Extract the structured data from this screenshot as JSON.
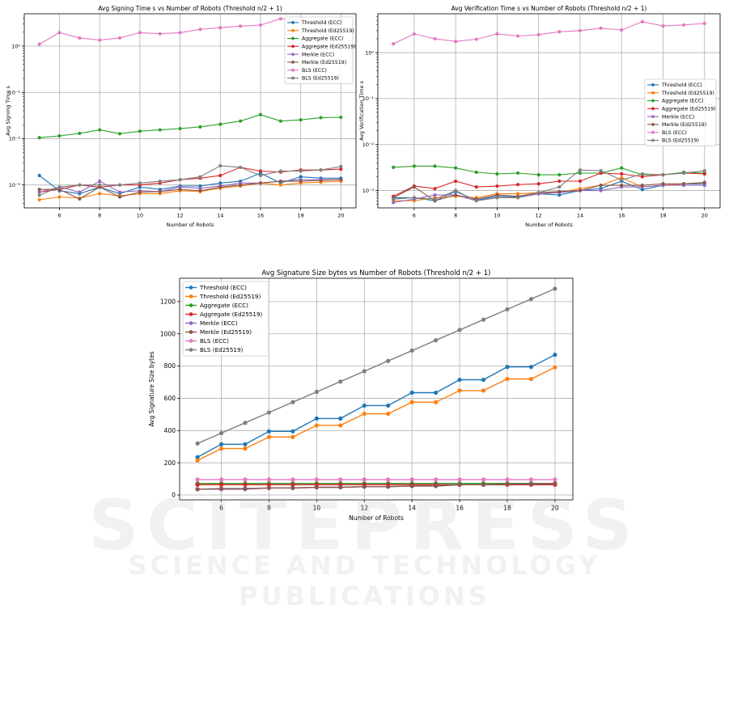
{
  "chart_data": [
    {
      "type": "line",
      "title": "Avg Signing Time s vs Number of Robots (Threshold n/2 + 1)",
      "xlabel": "Number of Robots",
      "ylabel": "Avg Signing Time s",
      "yscale": "log",
      "xlim": [
        4.25,
        20.75
      ],
      "ylim": [
        0.00032,
        5.0
      ],
      "xticks": [
        6,
        8,
        10,
        12,
        14,
        16,
        18,
        20
      ],
      "yticks": [
        0.001,
        0.01,
        0.1,
        1
      ],
      "ytick_labels": [
        "10⁻³",
        "10⁻²",
        "10⁻¹",
        "10⁰"
      ],
      "grid": true,
      "legend_position": "top-right",
      "x": [
        5,
        6,
        7,
        8,
        9,
        10,
        11,
        12,
        13,
        14,
        15,
        16,
        17,
        18,
        19,
        20
      ],
      "series": [
        {
          "name": "Threshold (ECC)",
          "color": "#1f77b4",
          "values": [
            0.0016,
            0.00075,
            0.00065,
            0.0009,
            0.00065,
            0.0009,
            0.0008,
            0.00095,
            0.00095,
            0.0011,
            0.0012,
            0.0018,
            0.0011,
            0.0015,
            0.0014,
            0.0014
          ]
        },
        {
          "name": "Threshold (Ed25519)",
          "color": "#ff7f0e",
          "values": [
            0.00048,
            0.00055,
            0.00052,
            0.00065,
            0.00058,
            0.00065,
            0.00065,
            0.00075,
            0.00072,
            0.00085,
            0.00095,
            0.0011,
            0.001,
            0.0011,
            0.00115,
            0.0012
          ]
        },
        {
          "name": "Aggregate (ECC)",
          "color": "#2ca02c",
          "values": [
            0.0105,
            0.0115,
            0.013,
            0.0155,
            0.0128,
            0.0145,
            0.0155,
            0.0165,
            0.018,
            0.0205,
            0.024,
            0.033,
            0.024,
            0.0255,
            0.0285,
            0.029
          ]
        },
        {
          "name": "Aggregate (Ed25519)",
          "color": "#d62728",
          "values": [
            0.0007,
            0.0008,
            0.001,
            0.0009,
            0.001,
            0.001,
            0.0011,
            0.0013,
            0.0014,
            0.0016,
            0.0024,
            0.002,
            0.0019,
            0.0021,
            0.0021,
            0.0022
          ]
        },
        {
          "name": "Merkle (ECC)",
          "color": "#9467bd",
          "values": [
            0.0007,
            0.0009,
            0.0007,
            0.0012,
            0.0007,
            0.00075,
            0.00072,
            0.0009,
            0.00085,
            0.00095,
            0.0011,
            0.0011,
            0.0012,
            0.0013,
            0.0013,
            0.0013
          ]
        },
        {
          "name": "Merkle (Ed25519)",
          "color": "#8c564b",
          "values": [
            0.0008,
            0.0008,
            0.0005,
            0.0009,
            0.00055,
            0.0007,
            0.00072,
            0.0008,
            0.00075,
            0.0009,
            0.001,
            0.0011,
            0.0012,
            0.0012,
            0.00125,
            0.0013
          ]
        },
        {
          "name": "BLS (ECC)",
          "color": "#e377c2",
          "values": [
            1.1,
            1.95,
            1.5,
            1.35,
            1.5,
            1.95,
            1.85,
            1.95,
            2.3,
            2.5,
            2.7,
            2.85,
            3.9,
            3.5,
            3.6,
            3.8
          ]
        },
        {
          "name": "BLS (Ed25519)",
          "color": "#7f7f7f",
          "values": [
            0.0006,
            0.0009,
            0.001,
            0.001,
            0.001,
            0.0011,
            0.0012,
            0.0013,
            0.0015,
            0.0026,
            0.0024,
            0.0016,
            0.002,
            0.002,
            0.0021,
            0.0025
          ]
        }
      ]
    },
    {
      "type": "line",
      "title": "Avg Verification Time s vs Number of Robots (Threshold n/2 + 1)",
      "xlabel": "Number of Robots",
      "ylabel": "Avg Verification Time s",
      "yscale": "log",
      "xlim": [
        4.25,
        20.75
      ],
      "ylim": [
        0.00042,
        7.0
      ],
      "xticks": [
        6,
        8,
        10,
        12,
        14,
        16,
        18,
        20
      ],
      "yticks": [
        0.001,
        0.01,
        0.1,
        1
      ],
      "ytick_labels": [
        "10⁻³",
        "10⁻²",
        "10⁻¹",
        "10⁰"
      ],
      "grid": true,
      "legend_position": "center-right",
      "x": [
        5,
        6,
        7,
        8,
        9,
        10,
        11,
        12,
        13,
        14,
        15,
        16,
        17,
        18,
        19,
        20
      ],
      "series": [
        {
          "name": "Threshold (ECC)",
          "color": "#1f77b4",
          "values": [
            0.0007,
            0.0007,
            0.0006,
            0.00095,
            0.00062,
            0.00075,
            0.00072,
            0.00085,
            0.0008,
            0.001,
            0.0011,
            0.0016,
            0.00105,
            0.0013,
            0.0014,
            0.0014
          ]
        },
        {
          "name": "Threshold (Ed25519)",
          "color": "#ff7f0e",
          "values": [
            0.0006,
            0.0006,
            0.0007,
            0.00075,
            0.0007,
            0.00085,
            0.00085,
            0.0009,
            0.0009,
            0.0011,
            0.0013,
            0.0019,
            0.0012,
            0.0013,
            0.0014,
            0.0015
          ]
        },
        {
          "name": "Aggregate (ECC)",
          "color": "#2ca02c",
          "values": [
            0.0032,
            0.0034,
            0.0034,
            0.0031,
            0.0025,
            0.0023,
            0.0024,
            0.0022,
            0.0022,
            0.0024,
            0.0024,
            0.0031,
            0.0022,
            0.0022,
            0.0025,
            0.0024
          ]
        },
        {
          "name": "Aggregate (Ed25519)",
          "color": "#d62728",
          "values": [
            0.00075,
            0.00125,
            0.0011,
            0.0016,
            0.0012,
            0.00125,
            0.00135,
            0.0014,
            0.0016,
            0.0016,
            0.0024,
            0.0023,
            0.002,
            0.0022,
            0.0024,
            0.0023
          ]
        },
        {
          "name": "Merkle (ECC)",
          "color": "#9467bd",
          "values": [
            0.00055,
            0.00065,
            0.0008,
            0.0008,
            0.0006,
            0.0007,
            0.0007,
            0.00085,
            0.0009,
            0.001,
            0.001,
            0.0012,
            0.0012,
            0.0013,
            0.0013,
            0.0013
          ]
        },
        {
          "name": "Merkle (Ed25519)",
          "color": "#8c564b",
          "values": [
            0.0007,
            0.0012,
            0.0006,
            0.0008,
            0.00065,
            0.0008,
            0.00075,
            0.0009,
            0.00095,
            0.001,
            0.0013,
            0.0013,
            0.0013,
            0.0014,
            0.0014,
            0.0015
          ]
        },
        {
          "name": "BLS (ECC)",
          "color": "#e377c2",
          "values": [
            1.55,
            2.55,
            2.0,
            1.75,
            1.95,
            2.55,
            2.3,
            2.45,
            2.85,
            3.0,
            3.4,
            3.1,
            4.7,
            3.8,
            4.0,
            4.3
          ]
        },
        {
          "name": "BLS (Ed25519)",
          "color": "#7f7f7f",
          "values": [
            0.00065,
            0.0007,
            0.00065,
            0.001,
            0.0006,
            0.0007,
            0.0007,
            0.0009,
            0.0012,
            0.0028,
            0.0027,
            0.0017,
            0.0023,
            0.0022,
            0.0024,
            0.0027
          ]
        }
      ]
    },
    {
      "type": "line",
      "title": "Avg Signature Size bytes vs Number of Robots (Threshold n/2 + 1)",
      "xlabel": "Number of Robots",
      "ylabel": "Avg Signature Size bytes",
      "yscale": "linear",
      "xlim": [
        4.25,
        20.75
      ],
      "ylim": [
        -30,
        1345
      ],
      "xticks": [
        6,
        8,
        10,
        12,
        14,
        16,
        18,
        20
      ],
      "yticks": [
        0,
        200,
        400,
        600,
        800,
        1000,
        1200
      ],
      "ytick_labels": [
        "0",
        "200",
        "400",
        "600",
        "800",
        "1000",
        "1200"
      ],
      "grid": true,
      "legend_position": "top-left",
      "x": [
        5,
        6,
        7,
        8,
        9,
        10,
        11,
        12,
        13,
        14,
        15,
        16,
        17,
        18,
        19,
        20
      ],
      "series": [
        {
          "name": "Threshold (ECC)",
          "color": "#1f77b4",
          "values": [
            235,
            315,
            315,
            395,
            395,
            475,
            475,
            555,
            555,
            635,
            635,
            715,
            715,
            795,
            795,
            870
          ]
        },
        {
          "name": "Threshold (Ed25519)",
          "color": "#ff7f0e",
          "values": [
            215,
            288,
            288,
            360,
            360,
            432,
            432,
            504,
            504,
            576,
            576,
            648,
            648,
            720,
            720,
            792
          ]
        },
        {
          "name": "Aggregate (ECC)",
          "color": "#2ca02c",
          "values": [
            72,
            72,
            72,
            72,
            72,
            72,
            72,
            72,
            72,
            72,
            72,
            72,
            72,
            72,
            72,
            72
          ]
        },
        {
          "name": "Aggregate (Ed25519)",
          "color": "#d62728",
          "values": [
            64,
            64,
            64,
            64,
            64,
            64,
            64,
            64,
            64,
            64,
            64,
            64,
            64,
            64,
            64,
            64
          ]
        },
        {
          "name": "Merkle (ECC)",
          "color": "#9467bd",
          "values": [
            36,
            36,
            36,
            44,
            44,
            48,
            48,
            52,
            52,
            56,
            56,
            64,
            64,
            68,
            68,
            72
          ]
        },
        {
          "name": "Merkle (Ed25519)",
          "color": "#8c564b",
          "values": [
            36,
            40,
            40,
            44,
            44,
            48,
            48,
            52,
            52,
            56,
            56,
            64,
            64,
            68,
            68,
            72
          ]
        },
        {
          "name": "BLS (ECC)",
          "color": "#e377c2",
          "values": [
            96,
            96,
            96,
            96,
            96,
            96,
            96,
            96,
            96,
            96,
            96,
            96,
            96,
            96,
            96,
            96
          ]
        },
        {
          "name": "BLS (Ed25519)",
          "color": "#7f7f7f",
          "values": [
            320,
            384,
            448,
            512,
            576,
            640,
            704,
            768,
            832,
            896,
            960,
            1024,
            1088,
            1152,
            1216,
            1280
          ]
        }
      ]
    }
  ],
  "watermark": {
    "line1": "SCITEPRESS",
    "line2": "SCIENCE AND TECHNOLOGY PUBLICATIONS"
  }
}
